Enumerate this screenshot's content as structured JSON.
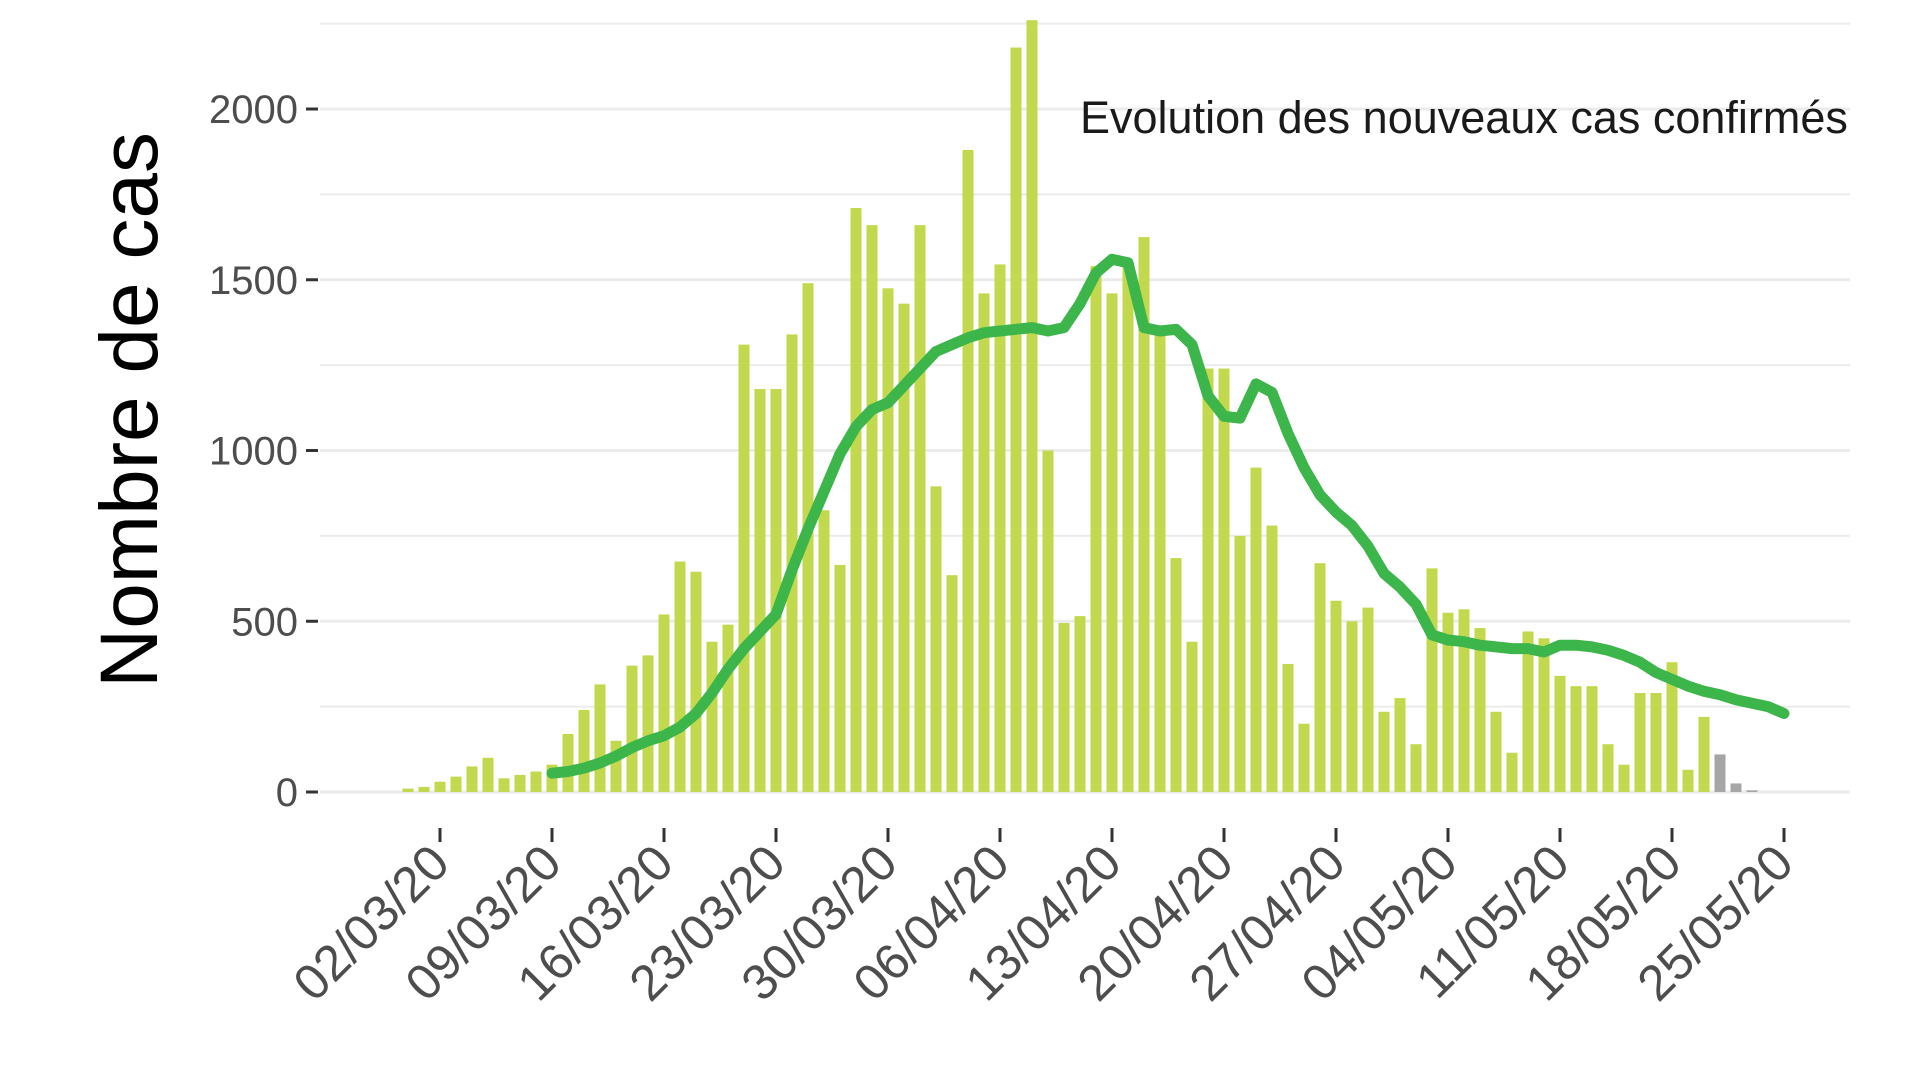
{
  "chart_data": {
    "type": "bar",
    "title": "",
    "annotation": "Evolution des nouveaux cas confirmés",
    "xlabel": "",
    "ylabel": "Nombre de cas",
    "ylim": [
      -60,
      2280
    ],
    "yticks": [
      0,
      500,
      1000,
      1500,
      2000
    ],
    "ytick_labels": [
      "0",
      "500",
      "1000",
      "1500",
      "2000"
    ],
    "grid": true,
    "legend": "none",
    "x_start_date": "2020-02-29",
    "xticks_dates": [
      "2020-03-02",
      "2020-03-09",
      "2020-03-16",
      "2020-03-23",
      "2020-03-30",
      "2020-04-06",
      "2020-04-13",
      "2020-04-20",
      "2020-04-27",
      "2020-05-04",
      "2020-05-11",
      "2020-05-18",
      "2020-05-25"
    ],
    "xtick_labels": [
      "02/03/20",
      "09/03/20",
      "16/03/20",
      "23/03/20",
      "30/03/20",
      "06/04/20",
      "13/04/20",
      "20/04/20",
      "27/04/20",
      "04/05/20",
      "11/05/20",
      "18/05/20",
      "25/05/20"
    ],
    "series": [
      {
        "kind": "bar",
        "values": [
          10,
          15,
          30,
          45,
          75,
          100,
          40,
          50,
          60,
          80,
          170,
          240,
          315,
          150,
          370,
          400,
          520,
          675,
          645,
          440,
          490,
          1310,
          1180,
          1180,
          1340,
          1490,
          825,
          665,
          1710,
          1660,
          1475,
          1430,
          1660,
          895,
          635,
          1880,
          1460,
          1545,
          2180,
          2260,
          1000,
          495,
          515,
          1540,
          1460,
          1555,
          1625,
          1340,
          685,
          440,
          1240,
          1240,
          750,
          950,
          780,
          375,
          200,
          670,
          560,
          500,
          540,
          235,
          275,
          140,
          655,
          525,
          535,
          480,
          235,
          115,
          470,
          450,
          340,
          310,
          310,
          140,
          80,
          290,
          290,
          380,
          65,
          220,
          110,
          25,
          5
        ]
      },
      {
        "kind": "line",
        "start_index": 9,
        "values": [
          55,
          60,
          70,
          85,
          105,
          130,
          150,
          165,
          190,
          230,
          290,
          360,
          420,
          470,
          520,
          650,
          770,
          880,
          990,
          1070,
          1120,
          1140,
          1190,
          1240,
          1290,
          1310,
          1330,
          1345,
          1350,
          1355,
          1360,
          1350,
          1360,
          1430,
          1520,
          1560,
          1550,
          1360,
          1350,
          1355,
          1310,
          1160,
          1100,
          1095,
          1195,
          1170,
          1050,
          950,
          870,
          820,
          780,
          720,
          640,
          600,
          550,
          460,
          445,
          440,
          430,
          425,
          420,
          420,
          410,
          430,
          430,
          425,
          415,
          400,
          380,
          350,
          330,
          310,
          295,
          285,
          270,
          260,
          250,
          230
        ]
      }
    ],
    "colors": {
      "bar": "#c2d94e",
      "bar_provisional": "#a6a6a6",
      "line": "#3cb54a",
      "grid": "#ebebeb",
      "axis_text": "#4d4d4d"
    },
    "provisional_from_index": 82
  }
}
